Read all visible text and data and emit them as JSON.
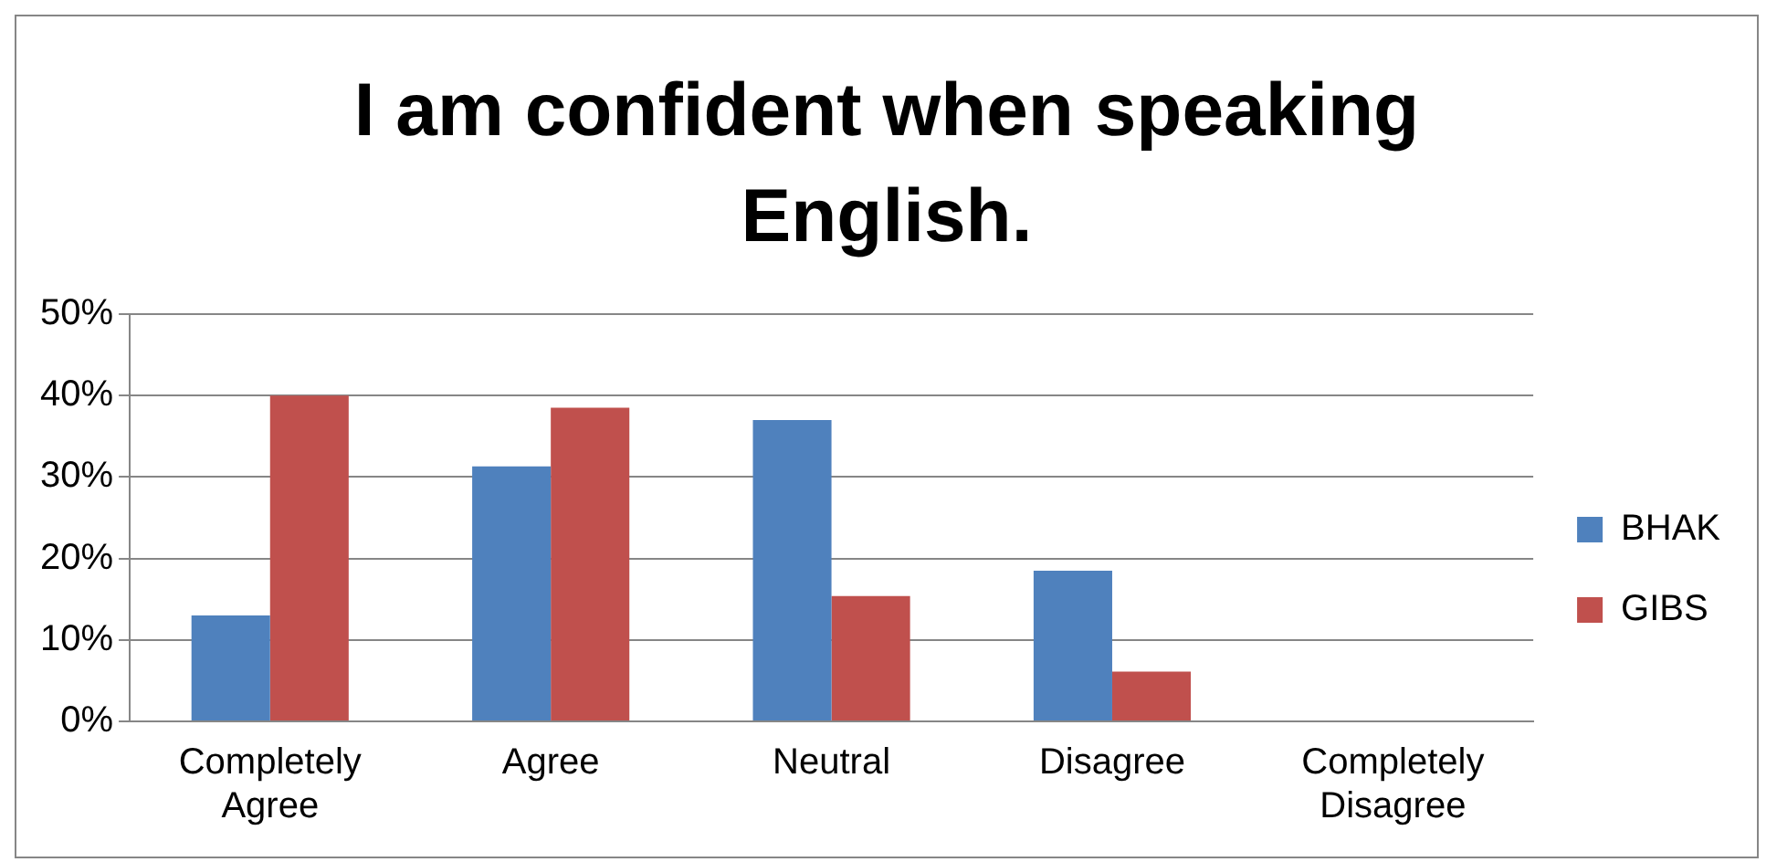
{
  "chart_data": {
    "type": "bar",
    "title": "I am confident when speaking English.",
    "categories": [
      "Completely Agree",
      "Agree",
      "Neutral",
      "Disagree",
      "Completely Disagree"
    ],
    "series": [
      {
        "name": "BHAK",
        "color": "#4f81bd",
        "values": [
          13,
          31.3,
          37,
          18.5,
          0
        ]
      },
      {
        "name": "GIBS",
        "color": "#c0504d",
        "values": [
          40,
          38.5,
          15.4,
          6.1,
          0
        ]
      }
    ],
    "ylim": [
      0,
      50
    ],
    "yticks": [
      {
        "value": 0,
        "label": "0%"
      },
      {
        "value": 10,
        "label": "10%"
      },
      {
        "value": 20,
        "label": "20%"
      },
      {
        "value": 30,
        "label": "30%"
      },
      {
        "value": 40,
        "label": "40%"
      },
      {
        "value": 50,
        "label": "50%"
      }
    ],
    "grid": "y",
    "legend": "right"
  }
}
